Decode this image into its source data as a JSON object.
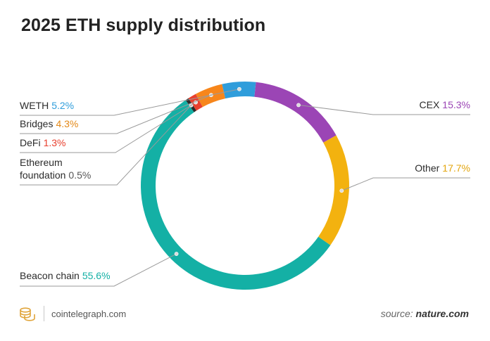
{
  "chart_data": {
    "type": "pie",
    "title": "2025 ETH supply distribution",
    "slices": [
      {
        "name": "CEX",
        "value": 15.3,
        "value_label": "15.3%",
        "color": "#9b45b5",
        "side": "right"
      },
      {
        "name": "Other",
        "value": 17.7,
        "value_label": "17.7%",
        "color": "#f3b20f",
        "side": "right"
      },
      {
        "name": "Beacon chain",
        "value": 55.6,
        "value_label": "55.6%",
        "color": "#14b0a5",
        "side": "left"
      },
      {
        "name": "Ethereum foundation",
        "value": 0.5,
        "value_label": "0.5%",
        "color": "#2b2b2b",
        "side": "left",
        "name_lines": [
          "Ethereum",
          "foundation"
        ]
      },
      {
        "name": "DeFi",
        "value": 1.3,
        "value_label": "1.3%",
        "color": "#e8402e",
        "side": "left"
      },
      {
        "name": "Bridges",
        "value": 4.3,
        "value_label": "4.3%",
        "color": "#f7861b",
        "side": "left"
      },
      {
        "name": "WETH",
        "value": 5.2,
        "value_label": "5.2%",
        "color": "#2f9ddb",
        "side": "left"
      }
    ],
    "label_colors": {
      "CEX": "#9b45b5",
      "Other": "#e3a50d",
      "Beacon chain": "#14b0a5",
      "Ethereum foundation": "#555555",
      "DeFi": "#e8402e",
      "Bridges": "#e38817",
      "WETH": "#2f9ddb"
    }
  },
  "footer": {
    "brand": "cointelegraph.com",
    "source_prefix": "source:",
    "source_name": "nature.com"
  }
}
